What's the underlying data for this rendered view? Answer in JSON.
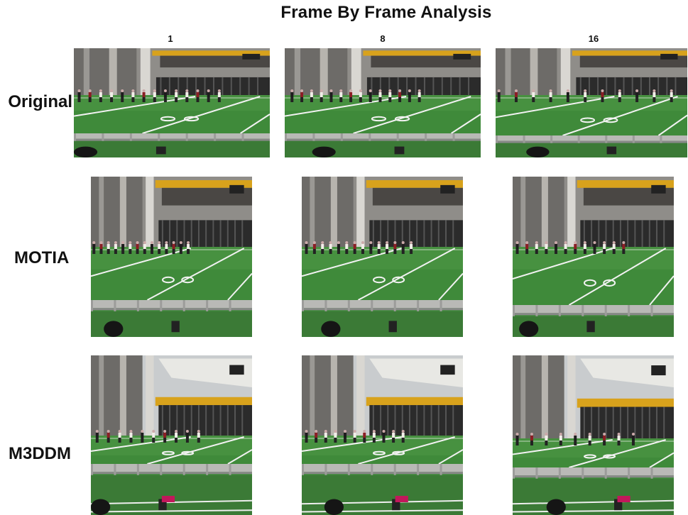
{
  "title": "Frame By Frame Analysis",
  "columns": [
    "1",
    "8",
    "16"
  ],
  "rows": [
    {
      "label": "Original"
    },
    {
      "label": "MOTIA"
    },
    {
      "label": "M3DDM"
    }
  ],
  "colors": {
    "field_green": "#3f8a3a",
    "field_line": "#f2f2f2",
    "stadium_gray": "#6d6b68",
    "yellow_band": "#d8a21c",
    "dark_structure": "#2b2b2b"
  }
}
